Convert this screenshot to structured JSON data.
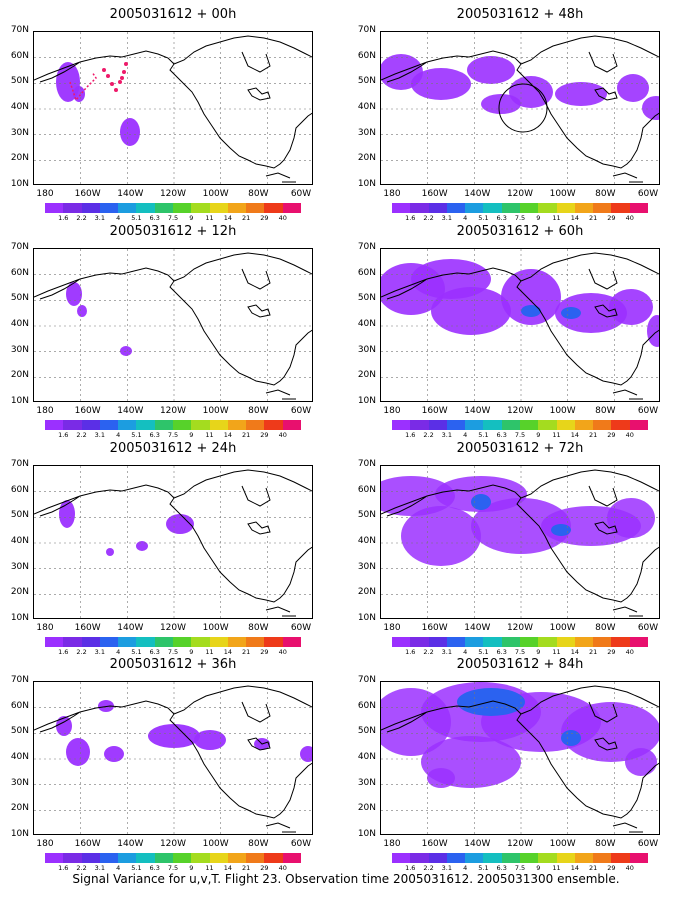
{
  "figure": {
    "caption": "Signal Variance for u,v,T. Flight 23. Observation time 2005031612. 2005031300 ensemble."
  },
  "axes": {
    "lat_labels": [
      "70N",
      "60N",
      "50N",
      "40N",
      "30N",
      "20N",
      "10N"
    ],
    "lon_labels": [
      "180",
      "160W",
      "140W",
      "120W",
      "100W",
      "80W",
      "60W"
    ]
  },
  "colorbar": {
    "colors": [
      "#9b30ff",
      "#7a2be6",
      "#5b2fe6",
      "#2b62f0",
      "#1c9de0",
      "#14bfc0",
      "#2ec46a",
      "#57d22a",
      "#a4dc1f",
      "#e7d51a",
      "#f2a51a",
      "#f07a1a",
      "#ee3a1a",
      "#e8106e"
    ],
    "labels": [
      "1.6",
      "2.2",
      "3.1",
      "4",
      "5.1",
      "6.3",
      "7.5",
      "9",
      "11",
      "14",
      "21",
      "29",
      "40"
    ]
  },
  "panels": [
    {
      "title": "2005031612 + 00h"
    },
    {
      "title": "2005031612 + 48h"
    },
    {
      "title": "2005031612 + 12h"
    },
    {
      "title": "2005031612 + 60h"
    },
    {
      "title": "2005031612 + 24h"
    },
    {
      "title": "2005031612 + 72h"
    },
    {
      "title": "2005031612 + 36h"
    },
    {
      "title": "2005031612 + 84h"
    }
  ]
}
